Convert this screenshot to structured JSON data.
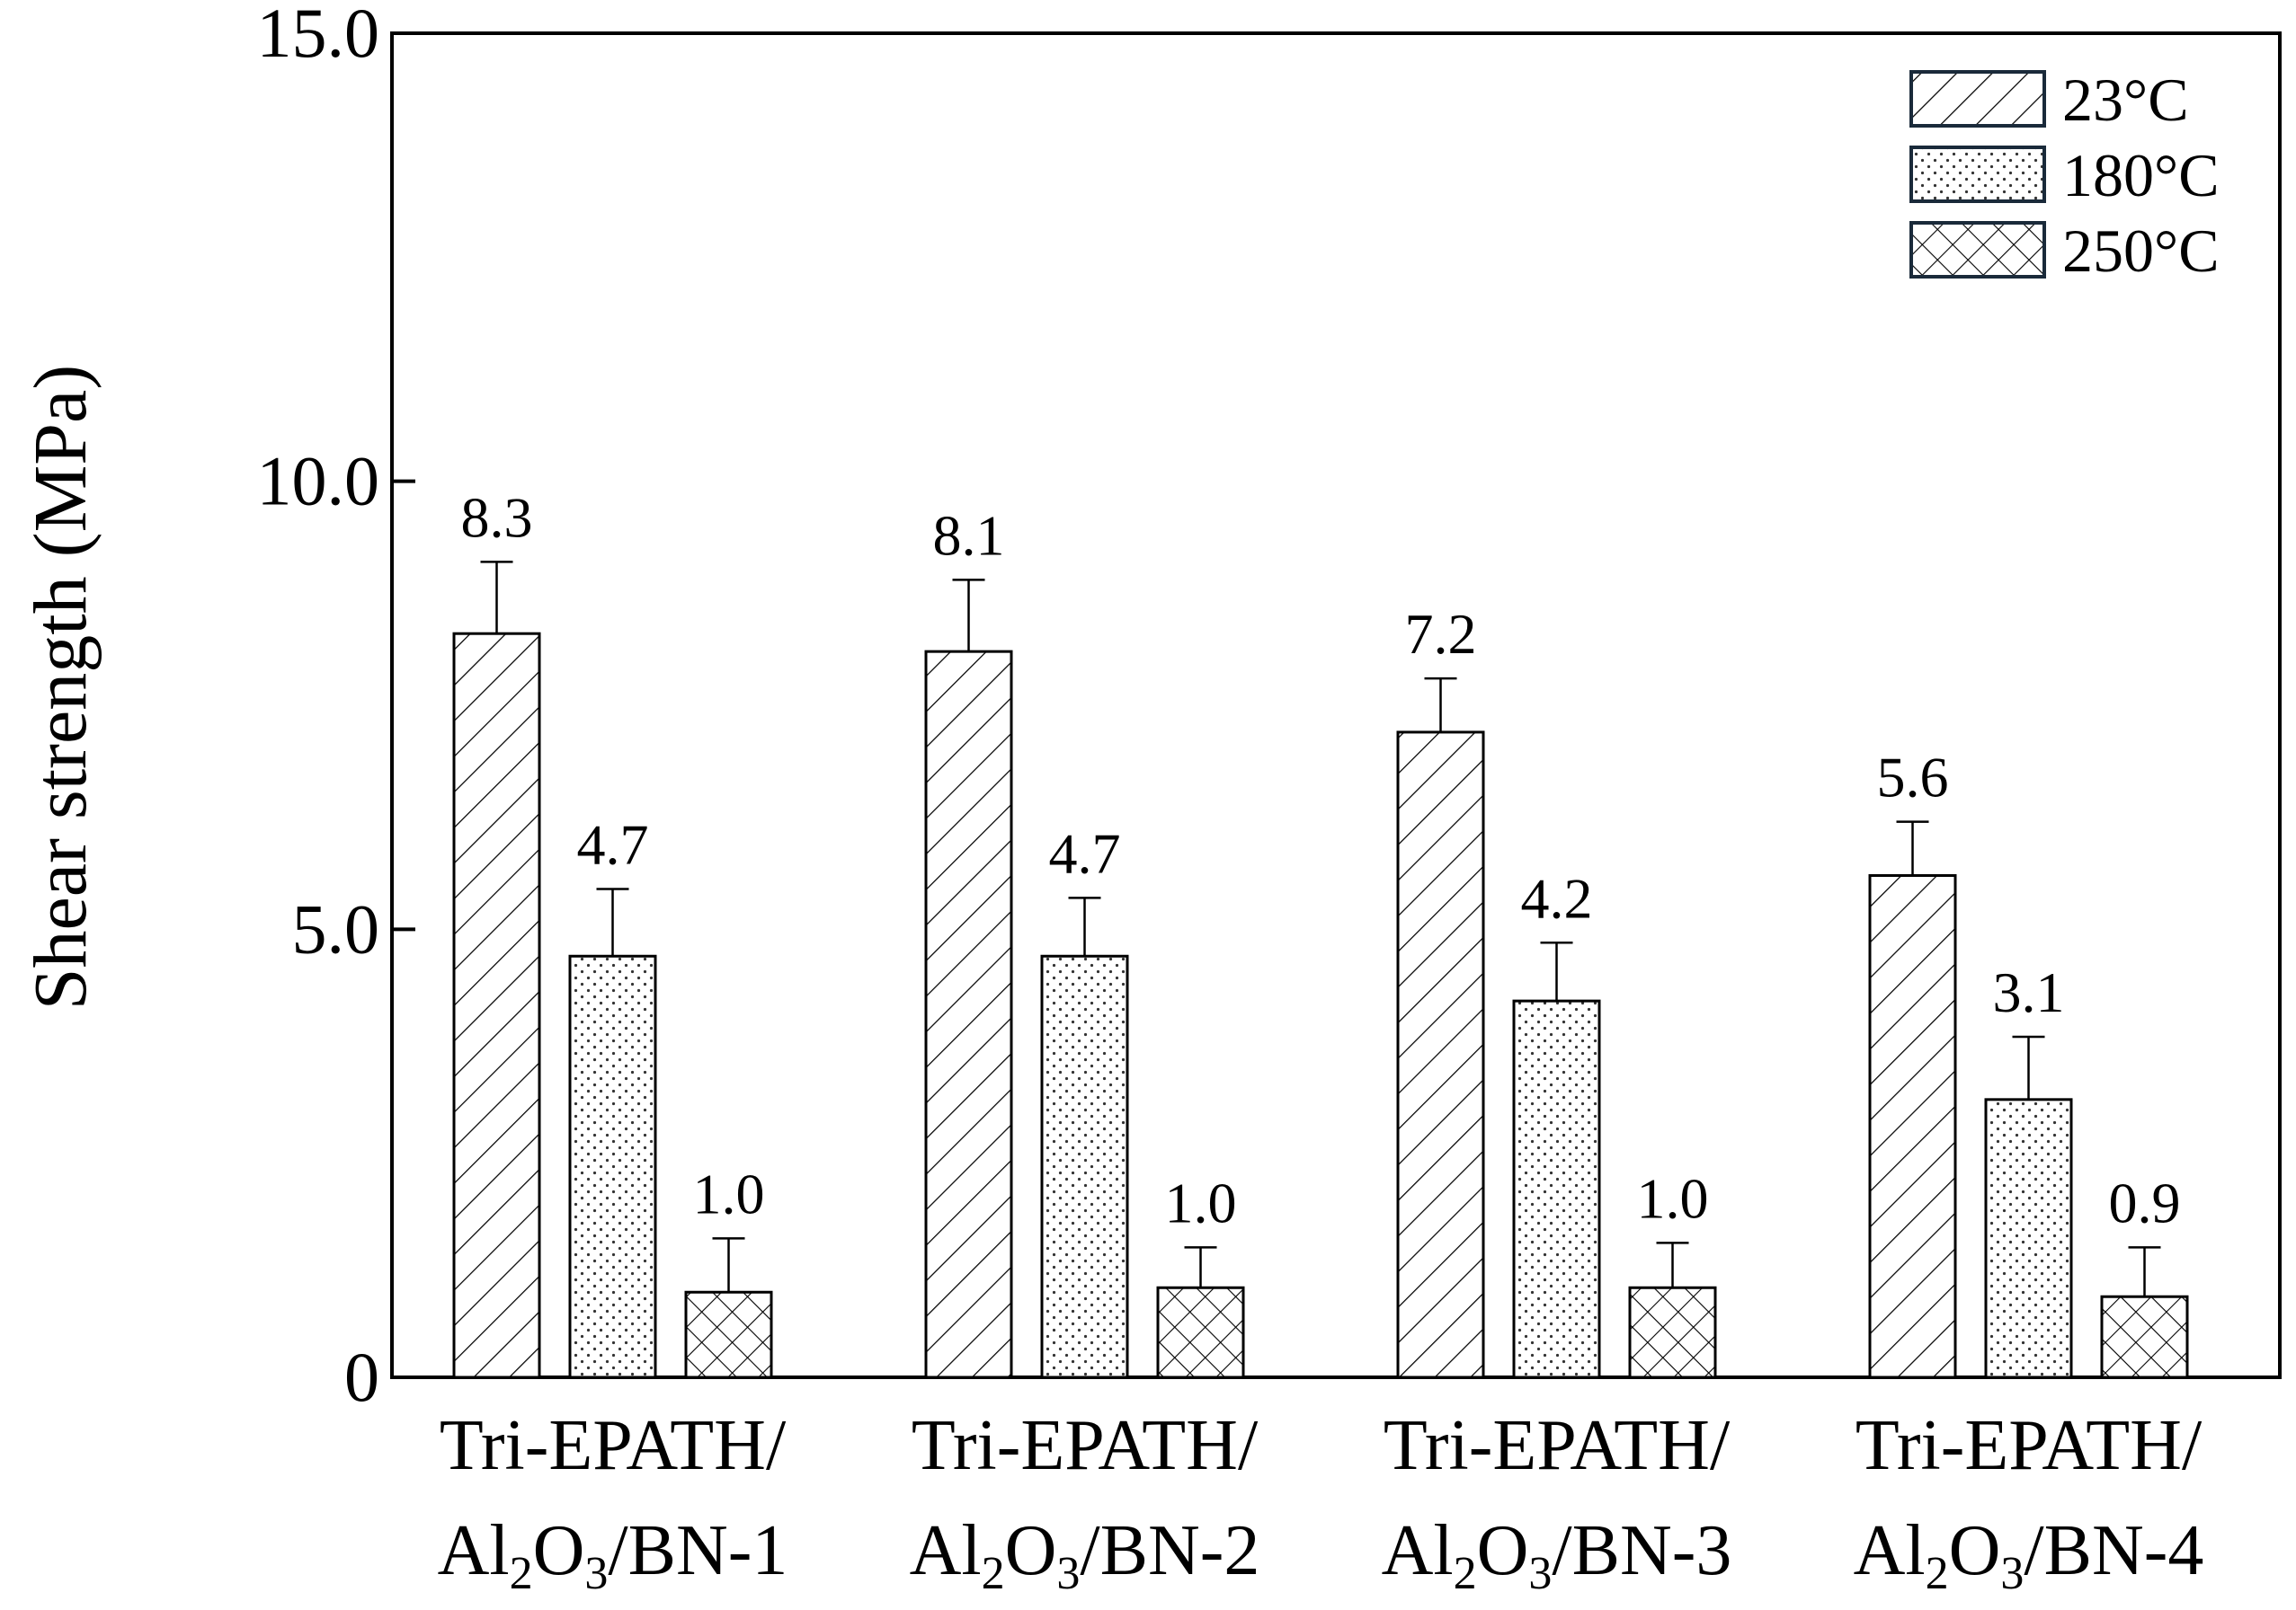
{
  "chart_data": {
    "type": "bar",
    "ylabel": "Shear strength (MPa)",
    "ylim": [
      0,
      15
    ],
    "yticks": [
      {
        "value": 0,
        "label": "0"
      },
      {
        "value": 5,
        "label": "5.0"
      },
      {
        "value": 10,
        "label": "10.0"
      },
      {
        "value": 15,
        "label": "15.0"
      }
    ],
    "categories": [
      {
        "line1": "Tri-EPATH/",
        "parts": [
          {
            "t": "Al"
          },
          {
            "t": "2",
            "sub": true
          },
          {
            "t": "O"
          },
          {
            "t": "3",
            "sub": true
          },
          {
            "t": "/BN-1"
          }
        ]
      },
      {
        "line1": "Tri-EPATH/",
        "parts": [
          {
            "t": "Al"
          },
          {
            "t": "2",
            "sub": true
          },
          {
            "t": "O"
          },
          {
            "t": "3",
            "sub": true
          },
          {
            "t": "/BN-2"
          }
        ]
      },
      {
        "line1": "Tri-EPATH/",
        "parts": [
          {
            "t": "Al"
          },
          {
            "t": "2",
            "sub": true
          },
          {
            "t": "O"
          },
          {
            "t": "3",
            "sub": true
          },
          {
            "t": "/BN-3"
          }
        ]
      },
      {
        "line1": "Tri-EPATH/",
        "parts": [
          {
            "t": "Al"
          },
          {
            "t": "2",
            "sub": true
          },
          {
            "t": "O"
          },
          {
            "t": "3",
            "sub": true
          },
          {
            "t": "/BN-4"
          }
        ]
      }
    ],
    "series": [
      {
        "name": "23°C",
        "pattern": "diagonal-hatch",
        "values": [
          8.3,
          8.1,
          7.2,
          5.6
        ],
        "errors": [
          0.8,
          0.8,
          0.6,
          0.6
        ],
        "labels": [
          "8.3",
          "8.1",
          "7.2",
          "5.6"
        ]
      },
      {
        "name": "180°C",
        "pattern": "dots",
        "values": [
          4.7,
          4.7,
          4.2,
          3.1
        ],
        "errors": [
          0.75,
          0.65,
          0.65,
          0.7
        ],
        "labels": [
          "4.7",
          "4.7",
          "4.2",
          "3.1"
        ]
      },
      {
        "name": "250°C",
        "pattern": "crosshatch",
        "values": [
          0.95,
          1.0,
          1.0,
          0.9
        ],
        "errors": [
          0.6,
          0.45,
          0.5,
          0.55
        ],
        "labels": [
          "1.0",
          "1.0",
          "1.0",
          "0.9"
        ]
      }
    ],
    "legend": {
      "position": "top-right"
    },
    "grid": false
  }
}
